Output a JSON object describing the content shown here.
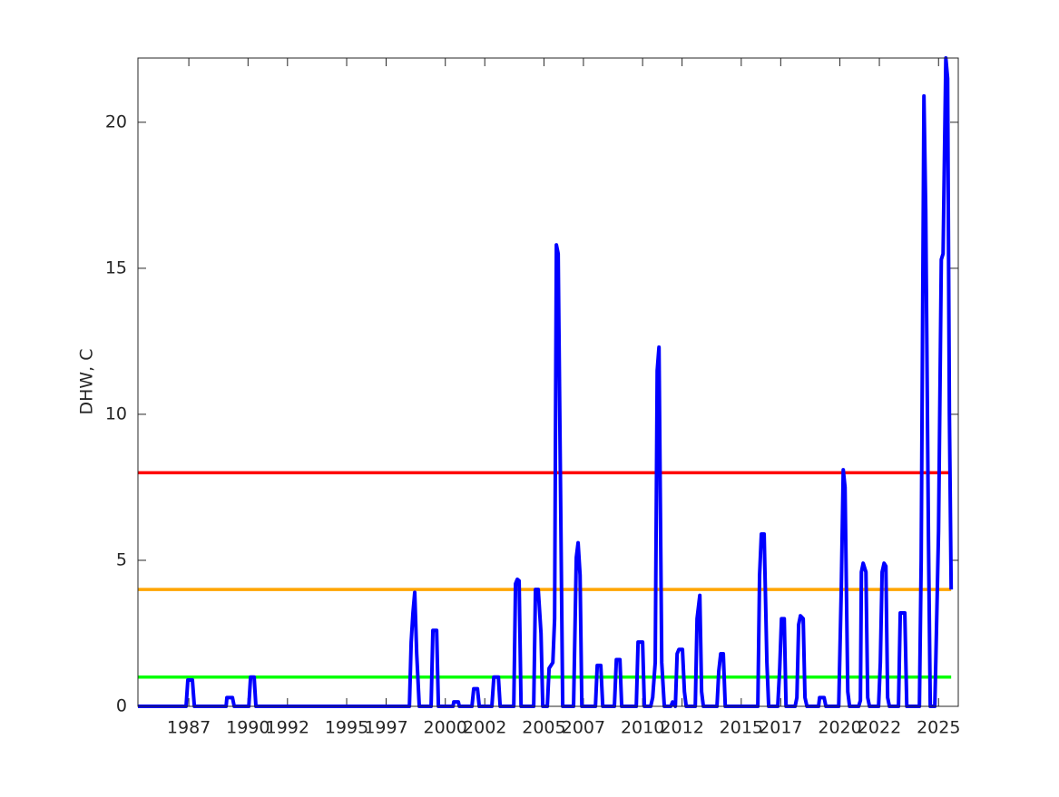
{
  "chart_data": {
    "type": "line",
    "ylabel": "DHW, C",
    "xlim": [
      1984.42,
      2026.0
    ],
    "ylim": [
      0,
      22.2
    ],
    "xticks": [
      1987,
      1990,
      1992,
      1995,
      1997,
      2000,
      2002,
      2005,
      2007,
      2010,
      2012,
      2015,
      2017,
      2020,
      2022,
      2025
    ],
    "yticks": [
      0,
      5,
      10,
      15,
      20
    ],
    "grid": false,
    "series": [
      {
        "color": "#0000ff",
        "x": [
          1984.42,
          1986.86,
          1986.95,
          1987.18,
          1987.28,
          1988.89,
          1988.93,
          1989.21,
          1989.3,
          1990.04,
          1990.13,
          1990.31,
          1990.4,
          1998.18,
          1998.27,
          1998.36,
          1998.45,
          1998.55,
          1998.68,
          1999.28,
          1999.37,
          1999.56,
          1999.65,
          2000.39,
          2000.43,
          2000.66,
          2000.71,
          2001.35,
          2001.44,
          2001.63,
          2001.72,
          2002.36,
          2002.46,
          2002.69,
          2002.78,
          2003.47,
          2003.56,
          2003.65,
          2003.74,
          2003.84,
          2004.48,
          2004.57,
          2004.71,
          2004.85,
          2004.94,
          2005.17,
          2005.26,
          2005.45,
          2005.54,
          2005.63,
          2005.72,
          2005.95,
          2006.5,
          2006.64,
          2006.73,
          2006.83,
          2006.92,
          2007.61,
          2007.7,
          2007.88,
          2007.98,
          2008.57,
          2008.67,
          2008.85,
          2008.94,
          2009.68,
          2009.77,
          2010.0,
          2010.09,
          2010.41,
          2010.51,
          2010.64,
          2010.74,
          2010.83,
          2010.97,
          2011.1,
          2011.43,
          2011.52,
          2011.66,
          2011.75,
          2011.84,
          2012.02,
          2012.12,
          2012.21,
          2012.67,
          2012.76,
          2012.9,
          2012.99,
          2013.08,
          2013.77,
          2013.86,
          2013.96,
          2014.09,
          2014.19,
          2015.84,
          2015.93,
          2016.02,
          2016.16,
          2016.3,
          2016.39,
          2016.85,
          2016.95,
          2017.04,
          2017.18,
          2017.27,
          2017.73,
          2017.82,
          2017.91,
          2018.0,
          2018.14,
          2018.23,
          2018.33,
          2018.92,
          2018.97,
          2019.2,
          2019.29,
          2019.94,
          2020.07,
          2020.17,
          2020.26,
          2020.4,
          2020.49,
          2020.95,
          2021.04,
          2021.09,
          2021.18,
          2021.32,
          2021.41,
          2021.5,
          2021.96,
          2022.05,
          2022.14,
          2022.24,
          2022.33,
          2022.42,
          2022.51,
          2022.97,
          2023.06,
          2023.29,
          2023.39,
          2024.03,
          2024.12,
          2024.26,
          2024.35,
          2024.49,
          2024.58,
          2024.81,
          2024.86,
          2025.0,
          2025.14,
          2025.23,
          2025.37,
          2025.46,
          2025.55,
          2025.64
        ],
        "values": [
          0,
          0,
          0.9,
          0.9,
          0,
          0,
          0.3,
          0.3,
          0,
          0,
          1.0,
          1.0,
          0,
          0,
          2.2,
          3.2,
          3.9,
          1.8,
          0,
          0,
          2.6,
          2.6,
          0,
          0,
          0.15,
          0.15,
          0,
          0,
          0.6,
          0.6,
          0,
          0,
          1.0,
          1.0,
          0,
          0,
          4.2,
          4.35,
          4.3,
          0,
          0,
          4.0,
          4.0,
          2.5,
          0,
          0,
          1.3,
          1.5,
          3.0,
          15.8,
          15.5,
          0,
          0,
          5.1,
          5.6,
          4.5,
          0,
          0,
          1.4,
          1.4,
          0,
          0,
          1.6,
          1.6,
          0,
          0,
          2.2,
          2.2,
          0,
          0,
          0.3,
          1.5,
          11.5,
          12.3,
          1.5,
          0,
          0,
          0.15,
          0,
          1.8,
          1.95,
          1.95,
          0.5,
          0,
          0,
          3.0,
          3.8,
          0.5,
          0,
          0,
          1.2,
          1.8,
          1.8,
          0,
          0,
          4.5,
          5.9,
          5.9,
          1.5,
          0,
          0,
          1.3,
          3.0,
          3.0,
          0,
          0,
          0.3,
          2.8,
          3.1,
          3.0,
          0.3,
          0,
          0,
          0.3,
          0.3,
          0,
          0,
          4.0,
          8.1,
          7.5,
          0.5,
          0,
          0,
          0.2,
          4.6,
          4.9,
          4.6,
          0.3,
          0,
          0,
          1.5,
          4.6,
          4.9,
          4.8,
          0.3,
          0,
          0,
          3.2,
          3.2,
          0,
          0,
          5,
          20.9,
          17,
          5.7,
          0,
          0,
          1.5,
          6,
          15.3,
          15.5,
          22.2,
          21.5,
          10,
          4
        ]
      },
      {
        "color": "#ff0000",
        "x": [
          1984.42,
          2025.64
        ],
        "values": [
          8,
          8
        ]
      },
      {
        "color": "#ffa500",
        "x": [
          1984.42,
          2025.64
        ],
        "values": [
          4,
          4
        ]
      },
      {
        "color": "#00ff00",
        "x": [
          1984.42,
          2025.64
        ],
        "values": [
          1,
          1
        ]
      }
    ]
  }
}
